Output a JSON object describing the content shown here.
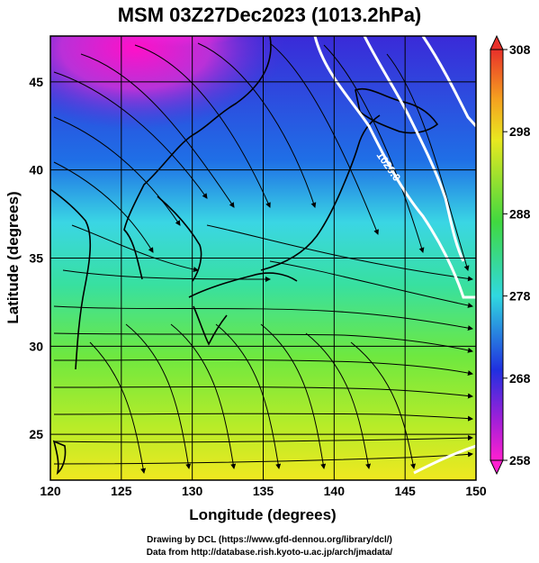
{
  "title": "MSM 03Z27Dec2023 (1013.2hPa)",
  "chart_data": {
    "type": "heatmap",
    "title": "MSM 03Z27Dec2023 (1013.2hPa)",
    "xlabel": "Longitude (degrees)",
    "ylabel": "Latitude  (degrees)",
    "xlim": [
      120,
      150
    ],
    "ylim": [
      22.4,
      47.6
    ],
    "x_ticks": [
      "120",
      "125",
      "130",
      "135",
      "140",
      "145",
      "150"
    ],
    "y_ticks": [
      "25",
      "30",
      "35",
      "40",
      "45"
    ],
    "grid": true,
    "colorbar": {
      "ticks": [
        "308",
        "298",
        "288",
        "278",
        "268",
        "258"
      ],
      "range": [
        258,
        308
      ]
    },
    "contour_label": "1020.0",
    "field": "temperature with streamlines"
  },
  "credits": {
    "line1": "Drawing by DCL (https://www.gfd-dennou.org/library/dcl/)",
    "line2": "Data from http://database.rish.kyoto-u.ac.jp/arch/jmadata/"
  }
}
